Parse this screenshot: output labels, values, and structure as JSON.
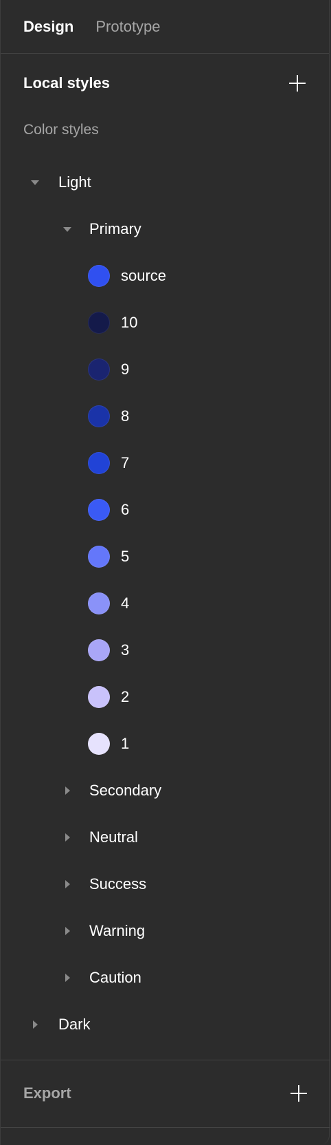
{
  "tabs": [
    {
      "label": "Design",
      "active": true
    },
    {
      "label": "Prototype",
      "active": false
    }
  ],
  "local_styles": {
    "title": "Local styles",
    "add_icon": "plus-icon"
  },
  "color_styles": {
    "heading": "Color styles",
    "groups": {
      "light": {
        "label": "Light",
        "expanded": true,
        "primary": {
          "label": "Primary",
          "expanded": true,
          "items": [
            {
              "label": "source",
              "color": "#3050f0"
            },
            {
              "label": "10",
              "color": "#141a4a"
            },
            {
              "label": "9",
              "color": "#1a2470"
            },
            {
              "label": "8",
              "color": "#1a33a8"
            },
            {
              "label": "7",
              "color": "#2143d6"
            },
            {
              "label": "6",
              "color": "#3a5af5"
            },
            {
              "label": "5",
              "color": "#6477fa"
            },
            {
              "label": "4",
              "color": "#8a92f8"
            },
            {
              "label": "3",
              "color": "#a9a6f7"
            },
            {
              "label": "2",
              "color": "#c9c2fb"
            },
            {
              "label": "1",
              "color": "#e6e2fd"
            }
          ]
        },
        "collapsed_groups": [
          "Secondary",
          "Neutral",
          "Success",
          "Warning",
          "Caution"
        ]
      },
      "dark": {
        "label": "Dark",
        "expanded": false
      }
    }
  },
  "export": {
    "title": "Export",
    "add_icon": "plus-icon"
  },
  "colors": {
    "background": "#2c2c2c",
    "divider": "#444444",
    "muted_text": "#a6a6a6",
    "caret": "#8a8a8a"
  }
}
